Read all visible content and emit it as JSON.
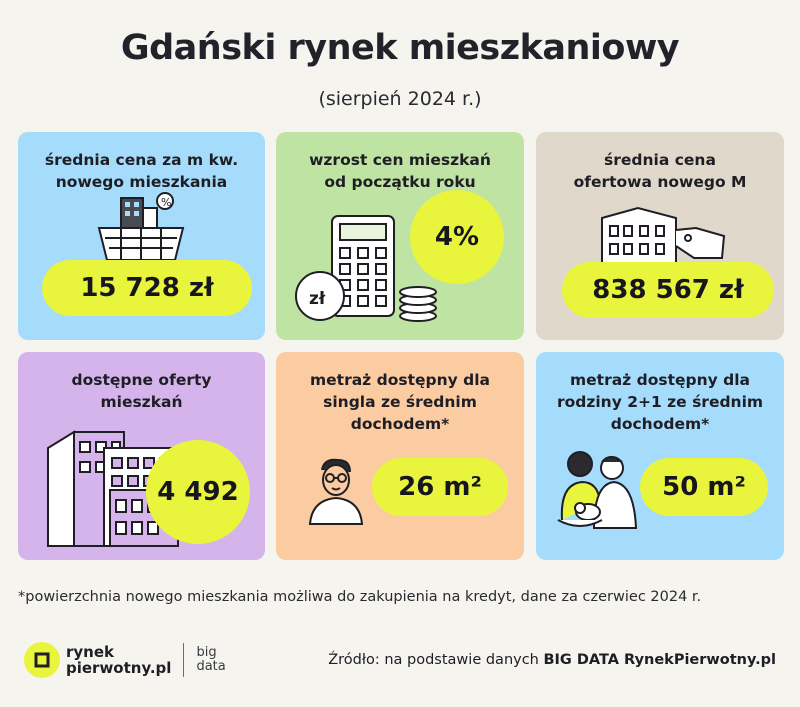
{
  "header": {
    "title": "Gdański rynek mieszkaniowy",
    "subtitle": "(sierpień 2024 r.)"
  },
  "cards": [
    {
      "label_1": "średnia cena za m kw.",
      "label_2": "nowego mieszkania",
      "value": "15 728 zł",
      "color": "#a5dcfb",
      "icon": "basket-building-percent-icon"
    },
    {
      "label_1": "wzrost cen mieszkań",
      "label_2": "od początku roku",
      "value": "4%",
      "color": "#bfe3a3",
      "icon": "calculator-coins-icon"
    },
    {
      "label_1": "średnia cena",
      "label_2": "ofertowa nowego M",
      "value": "838 567 zł",
      "color": "#e1d8cc",
      "icon": "building-price-tag-icon"
    },
    {
      "label_1": "dostępne oferty",
      "label_2": "mieszkań",
      "value": "4 492",
      "color": "#d5b4ec",
      "icon": "apartment-blocks-icon"
    },
    {
      "label_1": "metraż dostępny dla",
      "label_2": "singla ze średnim",
      "label_3": "dochodem*",
      "value": "26 m²",
      "color": "#fbcba1",
      "icon": "single-person-icon"
    },
    {
      "label_1": "metraż dostępny dla",
      "label_2": "rodziny 2+1 ze średnim",
      "label_3": "dochodem*",
      "value": "50 m²",
      "color": "#a5dcfb",
      "icon": "family-icon"
    }
  ],
  "calculator_coin_text": "zł",
  "footnote": "*powierzchnia nowego mieszkania możliwa do zakupienia na kredyt, dane za czerwiec 2024 r.",
  "footer": {
    "logo_line_1": "rynek",
    "logo_line_2": "pierwotny.pl",
    "partner_line_1": "big",
    "partner_line_2": "data",
    "source_prefix": "Źródło: na podstawie danych ",
    "source_bold": "BIG DATA RynekPierwotny.pl"
  },
  "colors": {
    "accent": "#e8f53c",
    "background": "#f6f4ef"
  }
}
